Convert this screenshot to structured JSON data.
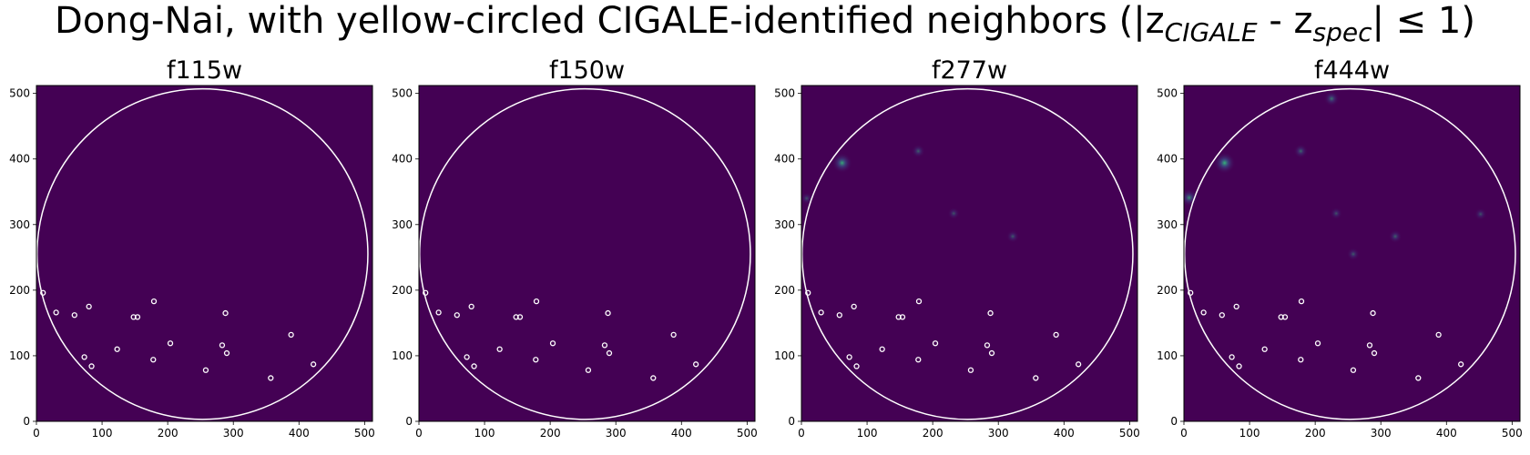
{
  "figure": {
    "title_main": "Dong-Nai, with yellow-circled CIGALE-identified neighbors (|z",
    "title_sub1": "CIGALE",
    "title_mid": " - z",
    "title_sub2": "spec",
    "title_end": "| ≤ 1)"
  },
  "colors": {
    "background": "#440154",
    "marker_edge": "#ffffff",
    "aperture": "#ffffff",
    "source_core": "#35b779",
    "source_halo": "#3b528b"
  },
  "chart_data": [
    {
      "type": "scatter",
      "title": "f115w",
      "xlim": [
        0,
        512
      ],
      "ylim": [
        0,
        512
      ],
      "xticks": [
        0,
        100,
        200,
        300,
        400,
        500
      ],
      "yticks": [
        0,
        100,
        200,
        300,
        400,
        500
      ],
      "aperture": {
        "cx": 253,
        "cy": 255,
        "r": 252
      },
      "neighbors": [
        {
          "x": 10,
          "y": 196
        },
        {
          "x": 30,
          "y": 166
        },
        {
          "x": 58,
          "y": 162
        },
        {
          "x": 80,
          "y": 175
        },
        {
          "x": 73,
          "y": 98
        },
        {
          "x": 84,
          "y": 84
        },
        {
          "x": 123,
          "y": 110
        },
        {
          "x": 148,
          "y": 159
        },
        {
          "x": 154,
          "y": 159
        },
        {
          "x": 179,
          "y": 183
        },
        {
          "x": 178,
          "y": 94
        },
        {
          "x": 204,
          "y": 119
        },
        {
          "x": 258,
          "y": 78
        },
        {
          "x": 283,
          "y": 116
        },
        {
          "x": 288,
          "y": 165
        },
        {
          "x": 290,
          "y": 104
        },
        {
          "x": 357,
          "y": 66
        },
        {
          "x": 388,
          "y": 132
        },
        {
          "x": 422,
          "y": 87
        }
      ],
      "sources": []
    },
    {
      "type": "scatter",
      "title": "f150w",
      "xlim": [
        0,
        512
      ],
      "ylim": [
        0,
        512
      ],
      "xticks": [
        0,
        100,
        200,
        300,
        400,
        500
      ],
      "yticks": [
        0,
        100,
        200,
        300,
        400,
        500
      ],
      "aperture": {
        "cx": 253,
        "cy": 255,
        "r": 252
      },
      "neighbors": [
        {
          "x": 10,
          "y": 196
        },
        {
          "x": 30,
          "y": 166
        },
        {
          "x": 58,
          "y": 162
        },
        {
          "x": 80,
          "y": 175
        },
        {
          "x": 73,
          "y": 98
        },
        {
          "x": 84,
          "y": 84
        },
        {
          "x": 123,
          "y": 110
        },
        {
          "x": 148,
          "y": 159
        },
        {
          "x": 154,
          "y": 159
        },
        {
          "x": 179,
          "y": 183
        },
        {
          "x": 178,
          "y": 94
        },
        {
          "x": 204,
          "y": 119
        },
        {
          "x": 258,
          "y": 78
        },
        {
          "x": 283,
          "y": 116
        },
        {
          "x": 288,
          "y": 165
        },
        {
          "x": 290,
          "y": 104
        },
        {
          "x": 357,
          "y": 66
        },
        {
          "x": 388,
          "y": 132
        },
        {
          "x": 422,
          "y": 87
        }
      ],
      "sources": []
    },
    {
      "type": "scatter",
      "title": "f277w",
      "xlim": [
        0,
        512
      ],
      "ylim": [
        0,
        512
      ],
      "xticks": [
        0,
        100,
        200,
        300,
        400,
        500
      ],
      "yticks": [
        0,
        100,
        200,
        300,
        400,
        500
      ],
      "aperture": {
        "cx": 253,
        "cy": 255,
        "r": 252
      },
      "neighbors": [
        {
          "x": 10,
          "y": 196
        },
        {
          "x": 30,
          "y": 166
        },
        {
          "x": 58,
          "y": 162
        },
        {
          "x": 80,
          "y": 175
        },
        {
          "x": 73,
          "y": 98
        },
        {
          "x": 84,
          "y": 84
        },
        {
          "x": 123,
          "y": 110
        },
        {
          "x": 148,
          "y": 159
        },
        {
          "x": 154,
          "y": 159
        },
        {
          "x": 179,
          "y": 183
        },
        {
          "x": 178,
          "y": 94
        },
        {
          "x": 204,
          "y": 119
        },
        {
          "x": 258,
          "y": 78
        },
        {
          "x": 283,
          "y": 116
        },
        {
          "x": 288,
          "y": 165
        },
        {
          "x": 290,
          "y": 104
        },
        {
          "x": 357,
          "y": 66
        },
        {
          "x": 388,
          "y": 132
        },
        {
          "x": 422,
          "y": 87
        }
      ],
      "sources": [
        {
          "x": 62,
          "y": 394,
          "intensity": 0.9
        },
        {
          "x": 178,
          "y": 412,
          "intensity": 0.35
        },
        {
          "x": 232,
          "y": 317,
          "intensity": 0.25
        },
        {
          "x": 322,
          "y": 282,
          "intensity": 0.3
        },
        {
          "x": 8,
          "y": 340,
          "intensity": 0.25
        }
      ]
    },
    {
      "type": "scatter",
      "title": "f444w",
      "xlim": [
        0,
        512
      ],
      "ylim": [
        0,
        512
      ],
      "xticks": [
        0,
        100,
        200,
        300,
        400,
        500
      ],
      "yticks": [
        0,
        100,
        200,
        300,
        400,
        500
      ],
      "aperture": {
        "cx": 253,
        "cy": 255,
        "r": 252
      },
      "neighbors": [
        {
          "x": 10,
          "y": 196
        },
        {
          "x": 30,
          "y": 166
        },
        {
          "x": 58,
          "y": 162
        },
        {
          "x": 80,
          "y": 175
        },
        {
          "x": 73,
          "y": 98
        },
        {
          "x": 84,
          "y": 84
        },
        {
          "x": 123,
          "y": 110
        },
        {
          "x": 148,
          "y": 159
        },
        {
          "x": 154,
          "y": 159
        },
        {
          "x": 179,
          "y": 183
        },
        {
          "x": 178,
          "y": 94
        },
        {
          "x": 204,
          "y": 119
        },
        {
          "x": 258,
          "y": 78
        },
        {
          "x": 283,
          "y": 116
        },
        {
          "x": 288,
          "y": 165
        },
        {
          "x": 290,
          "y": 104
        },
        {
          "x": 357,
          "y": 66
        },
        {
          "x": 388,
          "y": 132
        },
        {
          "x": 422,
          "y": 87
        }
      ],
      "sources": [
        {
          "x": 62,
          "y": 394,
          "intensity": 1.0
        },
        {
          "x": 8,
          "y": 341,
          "intensity": 0.7
        },
        {
          "x": 225,
          "y": 492,
          "intensity": 0.5
        },
        {
          "x": 178,
          "y": 412,
          "intensity": 0.4
        },
        {
          "x": 322,
          "y": 282,
          "intensity": 0.35
        },
        {
          "x": 258,
          "y": 255,
          "intensity": 0.3
        },
        {
          "x": 232,
          "y": 317,
          "intensity": 0.25
        },
        {
          "x": 452,
          "y": 316,
          "intensity": 0.25
        }
      ]
    }
  ]
}
